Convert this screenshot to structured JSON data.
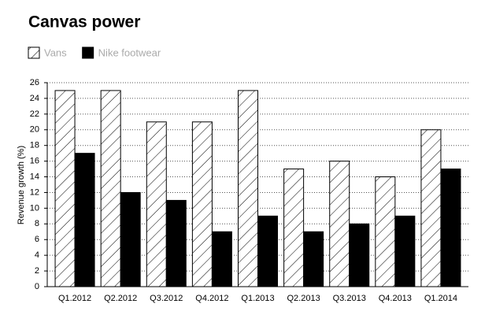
{
  "chart_data": {
    "type": "bar",
    "title": "Canvas power",
    "y_label": "Revenue growth (%)",
    "categories": [
      "Q1.2012",
      "Q2.2012",
      "Q3.2012",
      "Q4.2012",
      "Q1.2013",
      "Q2.2013",
      "Q3.2013",
      "Q4.2013",
      "Q1.2014"
    ],
    "series": [
      {
        "name": "Vans",
        "color": "#ffffff",
        "pattern": "hatch",
        "values": [
          25,
          25,
          21,
          21,
          25,
          15,
          16,
          14,
          20
        ]
      },
      {
        "name": "Nike footwear",
        "color": "#000000",
        "values": [
          17,
          12,
          11,
          7,
          9,
          7,
          8,
          9,
          15
        ]
      }
    ],
    "ylim": [
      0,
      26
    ],
    "yticks": [
      0,
      2,
      4,
      6,
      8,
      10,
      12,
      14,
      16,
      18,
      20,
      22,
      24,
      26
    ],
    "grid": true,
    "legend": "top-left"
  }
}
